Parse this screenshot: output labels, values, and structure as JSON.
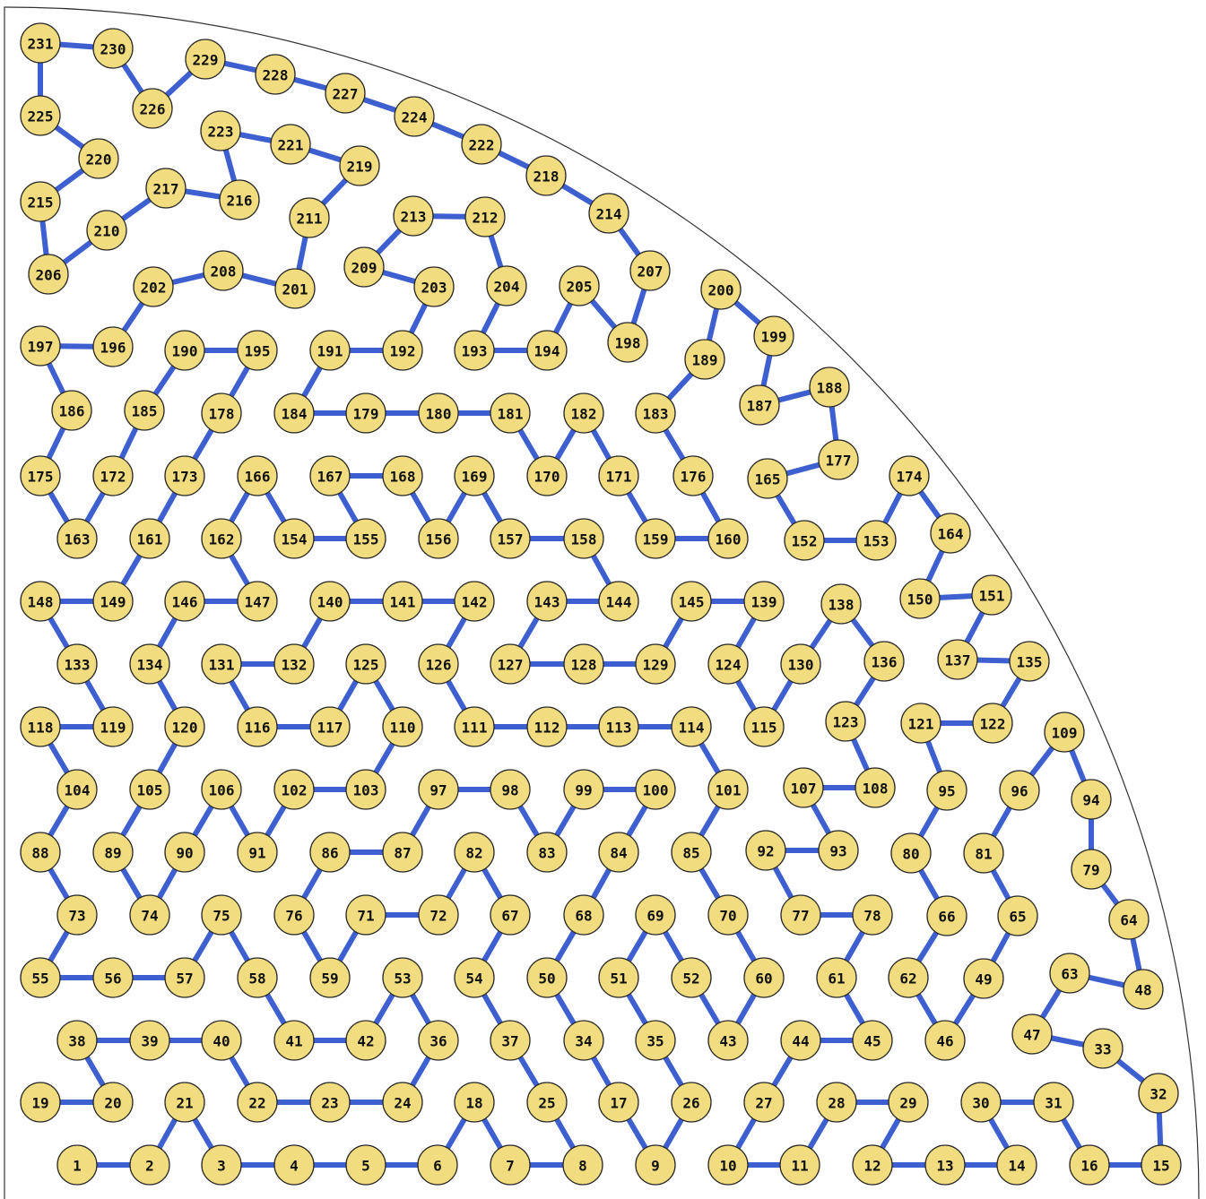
{
  "diagram": {
    "colors": {
      "node_fill": "#f1dc7f",
      "edge": "#3d5fcf",
      "outline": "#2a2a2a"
    },
    "path_order": [
      1,
      2,
      3,
      4,
      5,
      6,
      7,
      8,
      9,
      10,
      11,
      12,
      13,
      14,
      15,
      16,
      17,
      18,
      19,
      20,
      21,
      22,
      23,
      24,
      25,
      26,
      27,
      28,
      29,
      30,
      31,
      32,
      33,
      34,
      35,
      36,
      37,
      38,
      39,
      40,
      41,
      42,
      43,
      44,
      45,
      46,
      47,
      48,
      49,
      50,
      51,
      52,
      53,
      54,
      55,
      56,
      57,
      58,
      59,
      60,
      61,
      62,
      63,
      64,
      65,
      66,
      67,
      68,
      69,
      70,
      71,
      72,
      73,
      74,
      75,
      76,
      77,
      78,
      79,
      80,
      81,
      82,
      83,
      84,
      85,
      86,
      87,
      88,
      89,
      90,
      91,
      92,
      93,
      94,
      95,
      96,
      97,
      98,
      99,
      100,
      101,
      102,
      103,
      104,
      105,
      106,
      107,
      108,
      109,
      110,
      111,
      112,
      113,
      114,
      115,
      116,
      117,
      118,
      119,
      120,
      121,
      122,
      123,
      124,
      125,
      126,
      127,
      128,
      129,
      130,
      131,
      132,
      133,
      134,
      135,
      136,
      137,
      138,
      139,
      140,
      141,
      142,
      143,
      144,
      145,
      146,
      147,
      148,
      149,
      150,
      151,
      152,
      153,
      154,
      155,
      156,
      157,
      158,
      159,
      160,
      161,
      162,
      163,
      164,
      165,
      166,
      167,
      168,
      169,
      170,
      171,
      172,
      173,
      174,
      175,
      176,
      177,
      178,
      179,
      180,
      181,
      182,
      183,
      184,
      185,
      186,
      187,
      188,
      189,
      190,
      191,
      192,
      193,
      194,
      195,
      196,
      197,
      198,
      199,
      200,
      201,
      202,
      203,
      204,
      205,
      206,
      207,
      208,
      209,
      210,
      211,
      212,
      213,
      214,
      215,
      216,
      217,
      218,
      219,
      220,
      221,
      222,
      223,
      224,
      225,
      226,
      227,
      228,
      229,
      230,
      231
    ],
    "edges": [
      [
        1,
        2
      ],
      [
        2,
        21
      ],
      [
        21,
        3
      ],
      [
        3,
        4
      ],
      [
        4,
        5
      ],
      [
        5,
        6
      ],
      [
        6,
        18
      ],
      [
        18,
        7
      ],
      [
        7,
        8
      ],
      [
        8,
        25
      ],
      [
        25,
        37
      ],
      [
        37,
        54
      ],
      [
        54,
        67
      ],
      [
        67,
        82
      ],
      [
        82,
        72
      ],
      [
        72,
        71
      ],
      [
        71,
        59
      ],
      [
        59,
        76
      ],
      [
        76,
        86
      ],
      [
        86,
        87
      ],
      [
        87,
        97
      ],
      [
        97,
        98
      ],
      [
        98,
        83
      ],
      [
        83,
        99
      ],
      [
        99,
        100
      ],
      [
        100,
        84
      ],
      [
        84,
        68
      ],
      [
        68,
        50
      ],
      [
        50,
        34
      ],
      [
        34,
        17
      ],
      [
        17,
        9
      ],
      [
        9,
        26
      ],
      [
        26,
        35
      ],
      [
        35,
        51
      ],
      [
        51,
        69
      ],
      [
        69,
        52
      ],
      [
        52,
        43
      ],
      [
        43,
        60
      ],
      [
        60,
        70
      ],
      [
        70,
        85
      ],
      [
        85,
        101
      ],
      [
        101,
        114
      ],
      [
        114,
        113
      ],
      [
        113,
        112
      ],
      [
        112,
        111
      ],
      [
        111,
        126
      ],
      [
        126,
        142
      ],
      [
        142,
        141
      ],
      [
        141,
        140
      ],
      [
        140,
        132
      ],
      [
        132,
        131
      ],
      [
        131,
        116
      ],
      [
        116,
        117
      ],
      [
        117,
        125
      ],
      [
        125,
        110
      ],
      [
        110,
        103
      ],
      [
        103,
        102
      ],
      [
        102,
        91
      ],
      [
        91,
        106
      ],
      [
        106,
        90
      ],
      [
        90,
        74
      ],
      [
        74,
        89
      ],
      [
        89,
        105
      ],
      [
        105,
        120
      ],
      [
        120,
        134
      ],
      [
        134,
        146
      ],
      [
        146,
        147
      ],
      [
        147,
        162
      ],
      [
        162,
        166
      ],
      [
        166,
        154
      ],
      [
        154,
        155
      ],
      [
        155,
        167
      ],
      [
        167,
        168
      ],
      [
        168,
        156
      ],
      [
        156,
        169
      ],
      [
        169,
        157
      ],
      [
        157,
        158
      ],
      [
        158,
        144
      ],
      [
        144,
        143
      ],
      [
        143,
        127
      ],
      [
        127,
        128
      ],
      [
        128,
        129
      ],
      [
        129,
        145
      ],
      [
        145,
        139
      ],
      [
        139,
        124
      ],
      [
        124,
        115
      ],
      [
        115,
        130
      ],
      [
        130,
        138
      ],
      [
        138,
        136
      ],
      [
        136,
        123
      ],
      [
        123,
        108
      ],
      [
        108,
        107
      ],
      [
        107,
        93
      ],
      [
        93,
        92
      ],
      [
        92,
        77
      ],
      [
        77,
        78
      ],
      [
        78,
        61
      ],
      [
        61,
        45
      ],
      [
        45,
        44
      ],
      [
        44,
        27
      ],
      [
        27,
        10
      ],
      [
        10,
        11
      ],
      [
        11,
        28
      ],
      [
        28,
        29
      ],
      [
        29,
        12
      ],
      [
        12,
        13
      ],
      [
        13,
        14
      ],
      [
        14,
        30
      ],
      [
        30,
        31
      ],
      [
        31,
        16
      ],
      [
        16,
        15
      ],
      [
        15,
        32
      ],
      [
        32,
        33
      ],
      [
        33,
        47
      ],
      [
        47,
        63
      ],
      [
        63,
        48
      ],
      [
        48,
        64
      ],
      [
        64,
        79
      ],
      [
        79,
        94
      ],
      [
        94,
        109
      ],
      [
        109,
        96
      ],
      [
        96,
        81
      ],
      [
        81,
        65
      ],
      [
        65,
        49
      ],
      [
        49,
        46
      ],
      [
        46,
        62
      ],
      [
        62,
        66
      ],
      [
        66,
        80
      ],
      [
        80,
        95
      ],
      [
        95,
        121
      ],
      [
        121,
        122
      ],
      [
        122,
        135
      ],
      [
        135,
        137
      ],
      [
        137,
        151
      ],
      [
        151,
        150
      ],
      [
        150,
        164
      ],
      [
        164,
        174
      ],
      [
        174,
        153
      ],
      [
        153,
        152
      ],
      [
        152,
        165
      ],
      [
        165,
        177
      ],
      [
        177,
        188
      ],
      [
        188,
        187
      ],
      [
        187,
        199
      ],
      [
        199,
        200
      ],
      [
        200,
        189
      ],
      [
        189,
        183
      ],
      [
        183,
        176
      ],
      [
        176,
        160
      ],
      [
        160,
        159
      ],
      [
        159,
        171
      ],
      [
        171,
        182
      ],
      [
        182,
        170
      ],
      [
        170,
        181
      ],
      [
        181,
        180
      ],
      [
        180,
        179
      ],
      [
        179,
        184
      ],
      [
        184,
        191
      ],
      [
        191,
        192
      ],
      [
        192,
        203
      ],
      [
        203,
        209
      ],
      [
        209,
        213
      ],
      [
        213,
        212
      ],
      [
        212,
        204
      ],
      [
        204,
        193
      ],
      [
        193,
        194
      ],
      [
        194,
        205
      ],
      [
        205,
        198
      ],
      [
        198,
        207
      ],
      [
        207,
        214
      ],
      [
        214,
        218
      ],
      [
        218,
        222
      ],
      [
        222,
        224
      ],
      [
        224,
        227
      ],
      [
        227,
        228
      ],
      [
        228,
        229
      ],
      [
        229,
        226
      ],
      [
        226,
        230
      ],
      [
        230,
        231
      ],
      [
        231,
        225
      ],
      [
        225,
        220
      ],
      [
        220,
        215
      ],
      [
        215,
        206
      ],
      [
        206,
        210
      ],
      [
        210,
        217
      ],
      [
        217,
        216
      ],
      [
        216,
        223
      ],
      [
        223,
        221
      ],
      [
        221,
        219
      ],
      [
        219,
        211
      ],
      [
        211,
        201
      ],
      [
        201,
        208
      ],
      [
        208,
        202
      ],
      [
        202,
        196
      ],
      [
        196,
        197
      ],
      [
        197,
        186
      ],
      [
        186,
        175
      ],
      [
        175,
        163
      ],
      [
        163,
        172
      ],
      [
        172,
        185
      ],
      [
        185,
        190
      ],
      [
        190,
        195
      ],
      [
        195,
        178
      ],
      [
        178,
        173
      ],
      [
        173,
        161
      ],
      [
        161,
        149
      ],
      [
        149,
        148
      ],
      [
        148,
        133
      ],
      [
        133,
        119
      ],
      [
        119,
        118
      ],
      [
        118,
        104
      ],
      [
        104,
        88
      ],
      [
        88,
        73
      ],
      [
        73,
        55
      ],
      [
        55,
        56
      ],
      [
        56,
        57
      ],
      [
        57,
        75
      ],
      [
        75,
        58
      ],
      [
        58,
        41
      ],
      [
        41,
        42
      ],
      [
        42,
        53
      ],
      [
        53,
        36
      ],
      [
        36,
        24
      ],
      [
        24,
        23
      ],
      [
        23,
        22
      ],
      [
        22,
        40
      ],
      [
        40,
        39
      ],
      [
        39,
        38
      ],
      [
        38,
        20
      ],
      [
        20,
        19
      ]
    ]
  }
}
